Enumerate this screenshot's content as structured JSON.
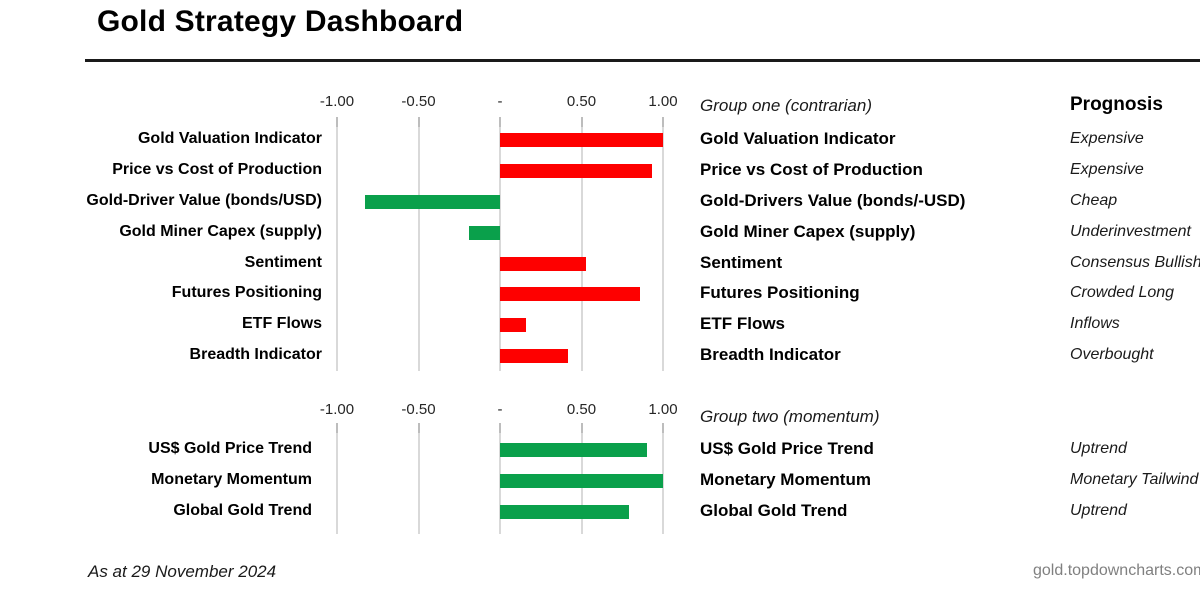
{
  "page": {
    "title": "Gold Strategy Dashboard",
    "as_at": "As at 29 November 2024",
    "source": "gold.topdowncharts.com"
  },
  "colors": {
    "red": "#fe0000",
    "green": "#0aa04b",
    "gridline": "#d9d9d9",
    "tick": "#bdbdbd",
    "rule": "#1a1a1a",
    "source_text": "#808080"
  },
  "chart_data": [
    {
      "type": "bar",
      "orientation": "horizontal",
      "title": "Group one (contrarian)",
      "prognosis_header": "Prognosis",
      "xlim": [
        -1,
        1
      ],
      "grid": true,
      "axis_ticks": [
        {
          "label": "-1.00",
          "value": -1
        },
        {
          "label": "-0.50",
          "value": -0.5
        },
        {
          "label": "-",
          "value": 0
        },
        {
          "label": "0.50",
          "value": 0.5
        },
        {
          "label": "1.00",
          "value": 1
        }
      ],
      "rows": [
        {
          "label": "Gold Valuation Indicator",
          "value": 1.0,
          "color": "red",
          "panel_label": "Gold Valuation Indicator",
          "prognosis": "Expensive"
        },
        {
          "label": "Price vs Cost of Production",
          "value": 0.93,
          "color": "red",
          "panel_label": "Price vs Cost of Production",
          "prognosis": "Expensive"
        },
        {
          "label": "Gold-Driver Value (bonds/USD)",
          "value": -0.83,
          "color": "green",
          "panel_label": "Gold-Drivers Value (bonds/-USD)",
          "prognosis": "Cheap"
        },
        {
          "label": "Gold Miner Capex (supply)",
          "value": -0.19,
          "color": "green",
          "panel_label": "Gold Miner Capex (supply)",
          "prognosis": "Underinvestment"
        },
        {
          "label": "Sentiment",
          "value": 0.53,
          "color": "red",
          "panel_label": "Sentiment",
          "prognosis": "Consensus Bullish"
        },
        {
          "label": "Futures Positioning",
          "value": 0.86,
          "color": "red",
          "panel_label": "Futures Positioning",
          "prognosis": "Crowded Long"
        },
        {
          "label": "ETF Flows",
          "value": 0.16,
          "color": "red",
          "panel_label": "ETF Flows",
          "prognosis": "Inflows"
        },
        {
          "label": "Breadth Indicator",
          "value": 0.42,
          "color": "red",
          "panel_label": "Breadth Indicator",
          "prognosis": "Overbought"
        }
      ]
    },
    {
      "type": "bar",
      "orientation": "horizontal",
      "title": "Group two (momentum)",
      "prognosis_header": "",
      "xlim": [
        -1,
        1
      ],
      "grid": true,
      "axis_ticks": [
        {
          "label": "-1.00",
          "value": -1
        },
        {
          "label": "-0.50",
          "value": -0.5
        },
        {
          "label": "-",
          "value": 0
        },
        {
          "label": "0.50",
          "value": 0.5
        },
        {
          "label": "1.00",
          "value": 1
        }
      ],
      "rows": [
        {
          "label": "US$ Gold Price Trend",
          "value": 0.9,
          "color": "green",
          "panel_label": "US$ Gold Price Trend",
          "prognosis": "Uptrend"
        },
        {
          "label": "Monetary Momentum",
          "value": 1.0,
          "color": "green",
          "panel_label": "Monetary Momentum",
          "prognosis": "Monetary Tailwind"
        },
        {
          "label": "Global Gold Trend",
          "value": 0.79,
          "color": "green",
          "panel_label": "Global Gold Trend",
          "prognosis": "Uptrend"
        }
      ]
    }
  ]
}
